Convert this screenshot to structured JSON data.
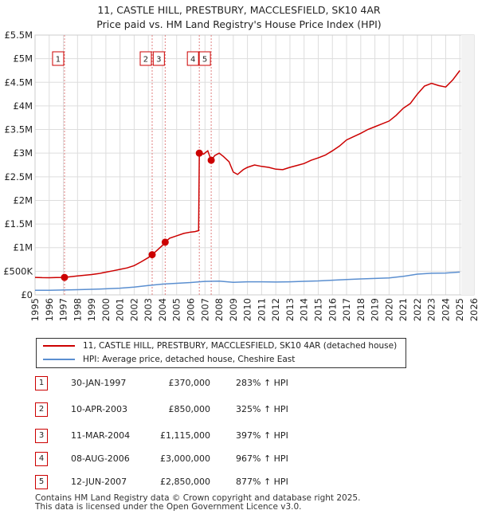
{
  "title": "11, CASTLE HILL, PRESTBURY, MACCLESFIELD, SK10 4AR",
  "subtitle": "Price paid vs. HM Land Registry's House Price Index (HPI)",
  "chart_data": {
    "type": "line",
    "title": "11, CASTLE HILL, PRESTBURY, MACCLESFIELD, SK10 4AR",
    "subtitle": "Price paid vs. HM Land Registry's House Price Index (HPI)",
    "xlabel": "",
    "ylabel": "",
    "xlim": [
      1995,
      2026
    ],
    "ylim": [
      0,
      5500000
    ],
    "grid": true,
    "x_ticks": [
      1995,
      1996,
      1997,
      1998,
      1999,
      2000,
      2001,
      2002,
      2003,
      2004,
      2005,
      2006,
      2007,
      2008,
      2009,
      2010,
      2011,
      2012,
      2013,
      2014,
      2015,
      2016,
      2017,
      2018,
      2019,
      2020,
      2021,
      2022,
      2023,
      2024,
      2025,
      2026
    ],
    "y_ticks": [
      {
        "value": 0,
        "label": "£0"
      },
      {
        "value": 500000,
        "label": "£500K"
      },
      {
        "value": 1000000,
        "label": "£1M"
      },
      {
        "value": 1500000,
        "label": "£1.5M"
      },
      {
        "value": 2000000,
        "label": "£2M"
      },
      {
        "value": 2500000,
        "label": "£2.5M"
      },
      {
        "value": 3000000,
        "label": "£3M"
      },
      {
        "value": 3500000,
        "label": "£3.5M"
      },
      {
        "value": 4000000,
        "label": "£4M"
      },
      {
        "value": 4500000,
        "label": "£4.5M"
      },
      {
        "value": 5000000,
        "label": "£5M"
      },
      {
        "value": 5500000,
        "label": "£5.5M"
      }
    ],
    "series": [
      {
        "name": "11, CASTLE HILL, PRESTBURY, MACCLESFIELD, SK10 4AR (detached house)",
        "color": "#cc0000",
        "points": [
          [
            1995.0,
            370000
          ],
          [
            1995.5,
            365000
          ],
          [
            1996.0,
            362000
          ],
          [
            1996.5,
            368000
          ],
          [
            1997.08,
            370000
          ],
          [
            1997.5,
            385000
          ],
          [
            1998.0,
            400000
          ],
          [
            1998.5,
            415000
          ],
          [
            1999.0,
            430000
          ],
          [
            1999.5,
            450000
          ],
          [
            2000.0,
            480000
          ],
          [
            2000.5,
            510000
          ],
          [
            2001.0,
            540000
          ],
          [
            2001.5,
            570000
          ],
          [
            2002.0,
            620000
          ],
          [
            2002.5,
            700000
          ],
          [
            2003.0,
            790000
          ],
          [
            2003.27,
            850000
          ],
          [
            2003.6,
            940000
          ],
          [
            2004.0,
            1050000
          ],
          [
            2004.19,
            1115000
          ],
          [
            2004.5,
            1200000
          ],
          [
            2005.0,
            1250000
          ],
          [
            2005.5,
            1300000
          ],
          [
            2006.0,
            1330000
          ],
          [
            2006.3,
            1340000
          ],
          [
            2006.55,
            1360000
          ],
          [
            2006.6,
            3000000
          ],
          [
            2006.9,
            2980000
          ],
          [
            2007.2,
            3050000
          ],
          [
            2007.44,
            2850000
          ],
          [
            2007.7,
            2950000
          ],
          [
            2008.0,
            3000000
          ],
          [
            2008.3,
            2930000
          ],
          [
            2008.7,
            2820000
          ],
          [
            2009.0,
            2600000
          ],
          [
            2009.3,
            2550000
          ],
          [
            2009.7,
            2650000
          ],
          [
            2010.0,
            2700000
          ],
          [
            2010.5,
            2750000
          ],
          [
            2011.0,
            2720000
          ],
          [
            2011.5,
            2700000
          ],
          [
            2012.0,
            2660000
          ],
          [
            2012.5,
            2650000
          ],
          [
            2013.0,
            2700000
          ],
          [
            2013.5,
            2740000
          ],
          [
            2014.0,
            2780000
          ],
          [
            2014.5,
            2850000
          ],
          [
            2015.0,
            2900000
          ],
          [
            2015.5,
            2960000
          ],
          [
            2016.0,
            3050000
          ],
          [
            2016.5,
            3150000
          ],
          [
            2017.0,
            3280000
          ],
          [
            2017.5,
            3350000
          ],
          [
            2018.0,
            3420000
          ],
          [
            2018.5,
            3500000
          ],
          [
            2019.0,
            3560000
          ],
          [
            2019.5,
            3620000
          ],
          [
            2020.0,
            3680000
          ],
          [
            2020.5,
            3800000
          ],
          [
            2021.0,
            3950000
          ],
          [
            2021.5,
            4050000
          ],
          [
            2022.0,
            4250000
          ],
          [
            2022.5,
            4420000
          ],
          [
            2023.0,
            4480000
          ],
          [
            2023.5,
            4430000
          ],
          [
            2024.0,
            4400000
          ],
          [
            2024.5,
            4550000
          ],
          [
            2025.0,
            4750000
          ]
        ]
      },
      {
        "name": "HPI: Average price, detached house, Cheshire East",
        "color": "#5b8fd0",
        "points": [
          [
            1995.0,
            96000
          ],
          [
            1996.0,
            98000
          ],
          [
            1997.0,
            103000
          ],
          [
            1998.0,
            110000
          ],
          [
            1999.0,
            118000
          ],
          [
            2000.0,
            128000
          ],
          [
            2001.0,
            142000
          ],
          [
            2002.0,
            165000
          ],
          [
            2003.0,
            198000
          ],
          [
            2004.0,
            228000
          ],
          [
            2005.0,
            245000
          ],
          [
            2006.0,
            262000
          ],
          [
            2007.0,
            285000
          ],
          [
            2008.0,
            292000
          ],
          [
            2009.0,
            266000
          ],
          [
            2010.0,
            277000
          ],
          [
            2011.0,
            276000
          ],
          [
            2012.0,
            272000
          ],
          [
            2013.0,
            276000
          ],
          [
            2014.0,
            286000
          ],
          [
            2015.0,
            296000
          ],
          [
            2016.0,
            310000
          ],
          [
            2017.0,
            325000
          ],
          [
            2018.0,
            338000
          ],
          [
            2019.0,
            348000
          ],
          [
            2020.0,
            360000
          ],
          [
            2021.0,
            392000
          ],
          [
            2022.0,
            438000
          ],
          [
            2023.0,
            458000
          ],
          [
            2024.0,
            462000
          ],
          [
            2025.0,
            482000
          ]
        ]
      }
    ],
    "sales": [
      {
        "num": "1",
        "year": 1997.08,
        "value": 370000
      },
      {
        "num": "2",
        "year": 2003.27,
        "value": 850000
      },
      {
        "num": "3",
        "year": 2004.19,
        "value": 1115000
      },
      {
        "num": "4",
        "year": 2006.6,
        "value": 3000000
      },
      {
        "num": "5",
        "year": 2007.44,
        "value": 2850000
      }
    ]
  },
  "legend": {
    "property_label": "11, CASTLE HILL, PRESTBURY, MACCLESFIELD, SK10 4AR (detached house)",
    "hpi_label": "HPI: Average price, detached house, Cheshire East"
  },
  "sales_table": [
    {
      "num": "1",
      "date": "30-JAN-1997",
      "price": "£370,000",
      "pct": "283% ↑ HPI"
    },
    {
      "num": "2",
      "date": "10-APR-2003",
      "price": "£850,000",
      "pct": "325% ↑ HPI"
    },
    {
      "num": "3",
      "date": "11-MAR-2004",
      "price": "£1,115,000",
      "pct": "397% ↑ HPI"
    },
    {
      "num": "4",
      "date": "08-AUG-2006",
      "price": "£3,000,000",
      "pct": "967% ↑ HPI"
    },
    {
      "num": "5",
      "date": "12-JUN-2007",
      "price": "£2,850,000",
      "pct": "877% ↑ HPI"
    }
  ],
  "footer": {
    "line1": "Contains HM Land Registry data © Crown copyright and database right 2025.",
    "line2": "This data is licensed under the Open Government Licence v3.0."
  }
}
